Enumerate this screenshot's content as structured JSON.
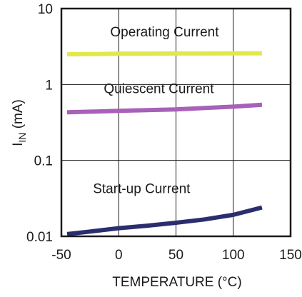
{
  "chart_data": {
    "type": "line",
    "title": "",
    "xlabel": "TEMPERATURE (°C)",
    "ylabel_main": "I",
    "ylabel_sub": "IN",
    "ylabel_unit": " (mA)",
    "xlim": [
      -50,
      150
    ],
    "ylim": [
      0.01,
      10
    ],
    "yscale": "log",
    "grid": true,
    "x_ticks": [
      -50,
      0,
      50,
      100,
      150
    ],
    "x_tick_labels": [
      "-50",
      "0",
      "50",
      "100",
      "150"
    ],
    "y_ticks": [
      0.01,
      0.1,
      1,
      10
    ],
    "y_tick_labels": [
      "0.01",
      "0.1",
      "1",
      "10"
    ],
    "series": [
      {
        "name": "Operating Current",
        "color": "#e2e84a",
        "x": [
          -45,
          -20,
          0,
          25,
          50,
          75,
          100,
          125
        ],
        "y": [
          2.5,
          2.52,
          2.55,
          2.55,
          2.56,
          2.56,
          2.57,
          2.58
        ]
      },
      {
        "name": "Quiescent Current",
        "color": "#a860b8",
        "x": [
          -45,
          -20,
          0,
          25,
          50,
          75,
          100,
          125
        ],
        "y": [
          0.43,
          0.44,
          0.45,
          0.46,
          0.47,
          0.49,
          0.51,
          0.54
        ]
      },
      {
        "name": "Start-up Current",
        "color": "#2a2e6e",
        "x": [
          -45,
          -20,
          0,
          25,
          50,
          75,
          100,
          125
        ],
        "y": [
          0.0107,
          0.0118,
          0.0128,
          0.0138,
          0.0151,
          0.0167,
          0.0192,
          0.024
        ]
      }
    ],
    "annotations": [
      {
        "text": "Operating Current",
        "x": 40,
        "y": 4.3
      },
      {
        "text": "Quiescent Current",
        "x": 35,
        "y": 0.77
      },
      {
        "text": "Start-up Current",
        "x": 20,
        "y": 0.037
      }
    ]
  }
}
